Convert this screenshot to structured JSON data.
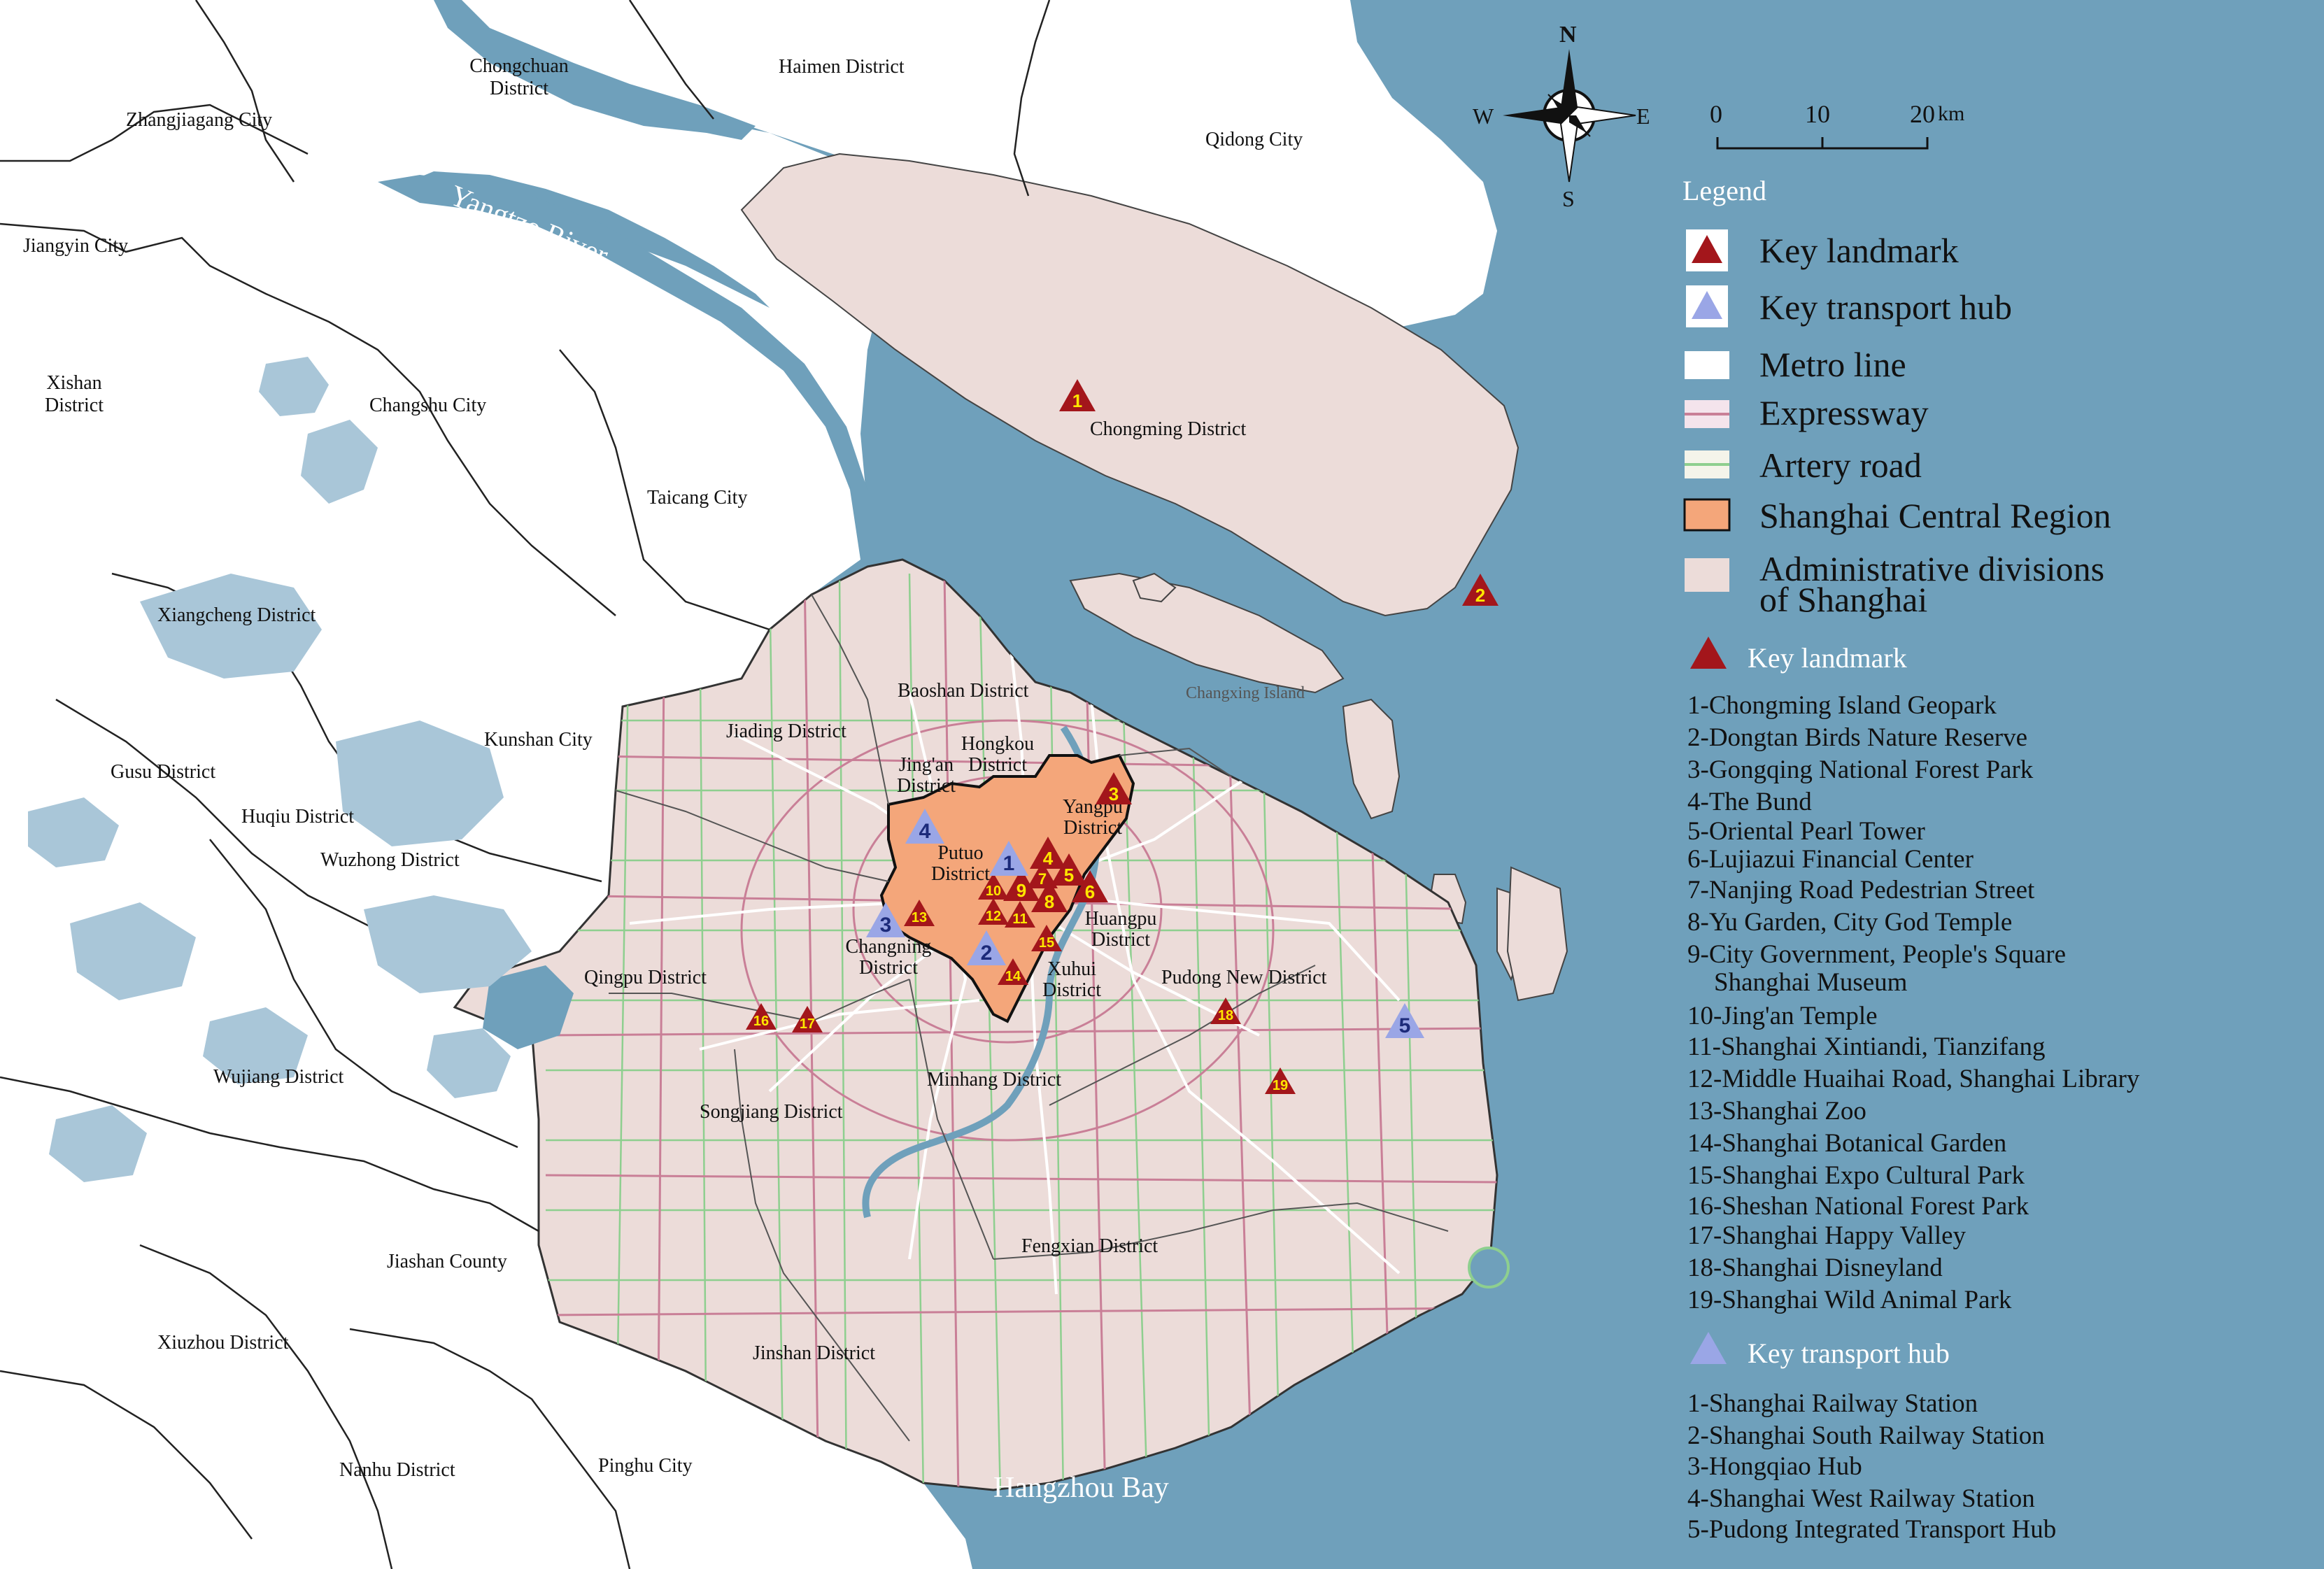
{
  "colors": {
    "sea": "#6fa0bb",
    "land_outside": "#ffffff",
    "shanghai": "#ecdcd9",
    "central": "#f4a67a",
    "landmark": "#a3161b",
    "hub": "#9aa6e6",
    "marker_num_landmark": "#ffe600",
    "marker_num_hub": "#1c2a7a",
    "metro": "#ffffff",
    "expressway": "#c97f97",
    "artery": "#8ecf8f",
    "boundary": "#222222",
    "lake": "#a9c6d8"
  },
  "water_labels": {
    "river": "Yangtze River",
    "bay": "Hangzhou Bay"
  },
  "compass": {
    "n": "N",
    "s": "S",
    "e": "E",
    "w": "W"
  },
  "scale_bar": {
    "t0": "0",
    "t1": "10",
    "t2": "20",
    "unit": "km"
  },
  "places": {
    "chongchuan": [
      "Chongchuan",
      "District"
    ],
    "haimen": "Haimen District",
    "zhangjiagang": "Zhangjiagang City",
    "qidong": "Qidong City",
    "jiangyin": "Jiangyin City",
    "xishan": [
      "Xishan",
      "District"
    ],
    "changshu": "Changshu City",
    "taicang": "Taicang City",
    "chongming": "Chongming District",
    "xiangcheng": "Xiangcheng District",
    "changxing": "Changxing Island",
    "baoshan": "Baoshan District",
    "kunshan": "Kunshan City",
    "jiading": "Jiading District",
    "hongkou": [
      "Hongkou",
      "District"
    ],
    "jingan": [
      "Jing'an",
      "District"
    ],
    "yangpu": [
      "Yangpu",
      "District"
    ],
    "gusu": "Gusu District",
    "huqiu": "Huqiu District",
    "wuzhong": "Wuzhong District",
    "putuo": [
      "Putuo",
      "District"
    ],
    "huangpu": [
      "Huangpu",
      "District"
    ],
    "changning": [
      "Changning",
      "District"
    ],
    "xuhui": [
      "Xuhui",
      "District"
    ],
    "qingpu": "Qingpu District",
    "pudong": "Pudong New District",
    "wujiang": "Wujiang District",
    "minhang": "Minhang District",
    "songjiang": "Songjiang District",
    "fengxian": "Fengxian District",
    "jiashan": "Jiashan County",
    "xiuzhou": "Xiuzhou District",
    "jinshan": "Jinshan District",
    "nanhu": "Nanhu District",
    "pinghu": "Pinghu City"
  },
  "landmark_markers": [
    {
      "n": "1",
      "icon": "key-landmark-icon"
    },
    {
      "n": "2",
      "icon": "key-landmark-icon"
    },
    {
      "n": "3",
      "icon": "key-landmark-icon"
    },
    {
      "n": "4",
      "icon": "key-landmark-icon"
    },
    {
      "n": "5",
      "icon": "key-landmark-icon"
    },
    {
      "n": "6",
      "icon": "key-landmark-icon"
    },
    {
      "n": "7",
      "icon": "key-landmark-icon"
    },
    {
      "n": "8",
      "icon": "key-landmark-icon"
    },
    {
      "n": "9",
      "icon": "key-landmark-icon"
    },
    {
      "n": "10",
      "icon": "key-landmark-icon"
    },
    {
      "n": "11",
      "icon": "key-landmark-icon"
    },
    {
      "n": "12",
      "icon": "key-landmark-icon"
    },
    {
      "n": "13",
      "icon": "key-landmark-icon"
    },
    {
      "n": "14",
      "icon": "key-landmark-icon"
    },
    {
      "n": "15",
      "icon": "key-landmark-icon"
    },
    {
      "n": "16",
      "icon": "key-landmark-icon"
    },
    {
      "n": "17",
      "icon": "key-landmark-icon"
    },
    {
      "n": "18",
      "icon": "key-landmark-icon"
    },
    {
      "n": "19",
      "icon": "key-landmark-icon"
    }
  ],
  "hub_markers": [
    {
      "n": "1",
      "icon": "key-transport-hub-icon"
    },
    {
      "n": "2",
      "icon": "key-transport-hub-icon"
    },
    {
      "n": "3",
      "icon": "key-transport-hub-icon"
    },
    {
      "n": "4",
      "icon": "key-transport-hub-icon"
    },
    {
      "n": "5",
      "icon": "key-transport-hub-icon"
    }
  ],
  "legend": {
    "title": "Legend",
    "items": [
      {
        "label": "Key landmark",
        "icon": "key-landmark-icon"
      },
      {
        "label": "Key transport hub",
        "icon": "key-transport-hub-icon"
      },
      {
        "label": "Metro line",
        "icon": "metro-line-icon"
      },
      {
        "label": "Expressway",
        "icon": "expressway-icon"
      },
      {
        "label": "Artery road",
        "icon": "artery-road-icon"
      },
      {
        "label": "Shanghai Central Region",
        "icon": "central-region-icon"
      },
      {
        "label": [
          "Administrative divisions",
          "of Shanghai"
        ],
        "icon": "admin-division-icon"
      }
    ],
    "landmark_heading": "Key landmark",
    "landmarks": [
      "1-Chongming Island Geopark",
      "2-Dongtan Birds Nature Reserve",
      "3-Gongqing National Forest Park",
      "4-The Bund",
      "5-Oriental Pearl Tower",
      "6-Lujiazui Financial Center",
      "7-Nanjing Road Pedestrian Street",
      "8-Yu Garden, City God Temple",
      [
        "9-City Government, People's Square",
        "Shanghai Museum"
      ],
      "10-Jing'an Temple",
      "11-Shanghai Xintiandi, Tianzifang",
      "12-Middle Huaihai Road, Shanghai Library",
      "13-Shanghai Zoo",
      "14-Shanghai Botanical Garden",
      "15-Shanghai Expo Cultural Park",
      "16-Sheshan National Forest Park",
      "17-Shanghai Happy Valley",
      "18-Shanghai Disneyland",
      "19-Shanghai Wild Animal Park"
    ],
    "hub_heading": "Key transport hub",
    "hubs": [
      "1-Shanghai Railway Station",
      "2-Shanghai South Railway Station",
      "3-Hongqiao Hub",
      "4-Shanghai West Railway Station",
      "5-Pudong Integrated Transport Hub"
    ]
  }
}
